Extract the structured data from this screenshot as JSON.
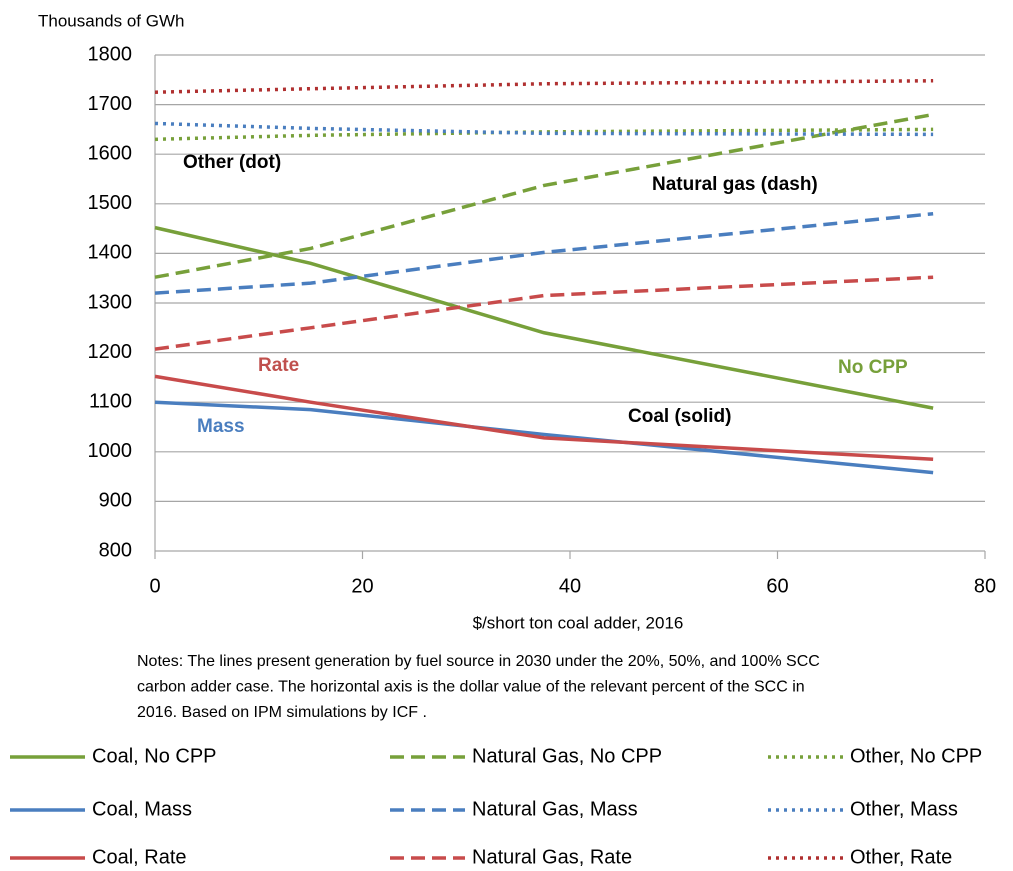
{
  "chart_data": {
    "type": "line",
    "y_label": "Thousands of GWh",
    "x_label": "$/short ton coal adder, 2016",
    "notes": [
      "Notes: The lines present generation by fuel source in 2030 under the 20%, 50%, and 100% SCC",
      "carbon adder case. The horizontal axis is the dollar value of the relevant percent of the SCC in",
      "2016. Based on IPM simulations by ICF ."
    ],
    "x": [
      0,
      15,
      37.5,
      75
    ],
    "xlim": [
      0,
      80
    ],
    "xticks": [
      0,
      20,
      40,
      60,
      80
    ],
    "ylim": [
      800,
      1800
    ],
    "yticks": [
      800,
      900,
      1000,
      1100,
      1200,
      1300,
      1400,
      1500,
      1600,
      1700,
      1800
    ],
    "grid": true,
    "annotations": [
      {
        "text": "Other (dot)",
        "color": "#000000"
      },
      {
        "text": "Natural gas (dash)",
        "color": "#000000"
      },
      {
        "text": "Rate",
        "color": "#c0504d"
      },
      {
        "text": "No CPP",
        "color": "#77a03a"
      },
      {
        "text": "Coal (solid)",
        "color": "#000000"
      },
      {
        "text": "Mass",
        "color": "#4a7ebf"
      }
    ],
    "series": [
      {
        "name": "Coal, No CPP",
        "color": "#77a03a",
        "style": "solid",
        "values": [
          1452,
          1380,
          1240,
          1088
        ]
      },
      {
        "name": "Natural Gas, No CPP",
        "color": "#77a03a",
        "style": "dash",
        "values": [
          1352,
          1410,
          1537,
          1680
        ]
      },
      {
        "name": "Other, No CPP",
        "color": "#77a03a",
        "style": "dot",
        "values": [
          1630,
          1638,
          1645,
          1650
        ]
      },
      {
        "name": "Coal, Mass",
        "color": "#4a7ebf",
        "style": "solid",
        "values": [
          1100,
          1085,
          1035,
          958
        ]
      },
      {
        "name": "Natural Gas, Mass",
        "color": "#4a7ebf",
        "style": "dash",
        "values": [
          1320,
          1340,
          1402,
          1480
        ]
      },
      {
        "name": "Other, Mass",
        "color": "#4a7ebf",
        "style": "dot",
        "values": [
          1662,
          1652,
          1642,
          1640
        ]
      },
      {
        "name": "Coal, Rate",
        "color": "#c84b4b",
        "style": "solid",
        "values": [
          1152,
          1100,
          1028,
          985
        ]
      },
      {
        "name": "Natural Gas, Rate",
        "color": "#c84b4b",
        "style": "dash",
        "values": [
          1207,
          1250,
          1315,
          1352
        ]
      },
      {
        "name": "Other, Rate",
        "color": "#b03030",
        "style": "dot",
        "values": [
          1725,
          1732,
          1742,
          1748
        ]
      }
    ]
  }
}
